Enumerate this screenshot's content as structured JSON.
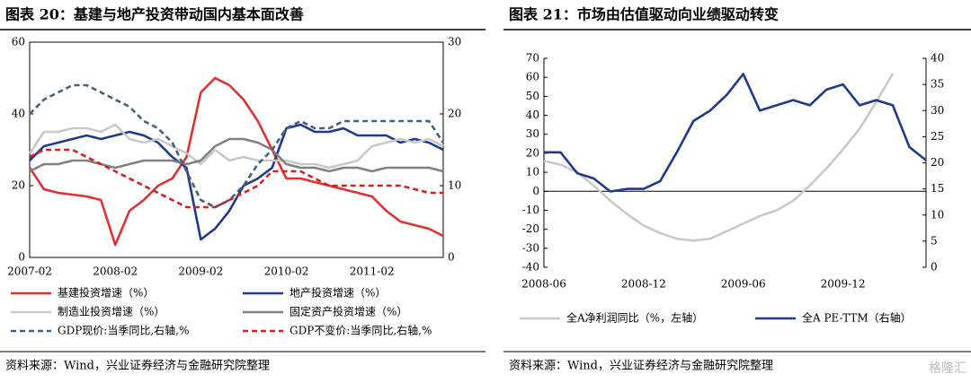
{
  "chart_data": [
    {
      "type": "line",
      "title": "图表 20：基建与地产投资带动国内基本面改善",
      "source": "资料来源：Wind，兴业证券经济与金融研究院整理",
      "categories": [
        "2007-02",
        null,
        null,
        null,
        null,
        null,
        "2008-02",
        null,
        null,
        null,
        null,
        null,
        "2009-02",
        null,
        null,
        null,
        null,
        null,
        "2010-02",
        null,
        null,
        null,
        null,
        null,
        "2011-02",
        null,
        null,
        null,
        null,
        null
      ],
      "ylim": [
        0,
        60
      ],
      "yticks": [
        0,
        20,
        40,
        60
      ],
      "y2lim": [
        0,
        30
      ],
      "y2ticks": [
        0,
        10,
        20,
        30
      ],
      "frame": true,
      "series": [
        {
          "name": "基建投资增速（%）",
          "color": "#e03131",
          "values": [
            25,
            19,
            18,
            17.5,
            17,
            16,
            3.5,
            13,
            16,
            20,
            22,
            28,
            46,
            50,
            48,
            44,
            38,
            30,
            22,
            22,
            21,
            20,
            19,
            18,
            17,
            13,
            10,
            9,
            8,
            6
          ]
        },
        {
          "name": "地产投资增速（%）",
          "color": "#1f3a8a",
          "values": [
            27,
            31,
            32,
            33,
            34,
            33,
            34,
            35,
            34,
            32,
            28,
            25,
            5,
            8,
            13,
            20,
            22,
            25,
            36,
            37,
            35,
            35,
            36,
            34,
            34,
            34,
            32,
            33,
            32,
            30
          ]
        },
        {
          "name": "制造业投资增速（%）",
          "color": "#c8c8c8",
          "values": [
            29,
            35,
            35,
            36,
            36,
            35,
            37,
            33,
            32,
            33,
            31,
            29,
            26,
            30,
            27,
            28,
            27,
            27,
            27,
            26,
            26,
            25,
            26,
            27,
            31,
            32,
            33,
            32,
            33,
            31
          ]
        },
        {
          "name": "固定资产投资增速（%）",
          "color": "#808080",
          "values": [
            24,
            26,
            26,
            27,
            27,
            26,
            25,
            26,
            27,
            27,
            27,
            26,
            27,
            31,
            33,
            33,
            32,
            30,
            26,
            25,
            25,
            24,
            25,
            25,
            24,
            25,
            25,
            25,
            25,
            24
          ]
        },
        {
          "name": "GDP现价:当季同比,右轴,%",
          "color": "#44607f",
          "dashed": true,
          "axis": "y2",
          "values": [
            20,
            22,
            23,
            24,
            24,
            23,
            22,
            21,
            19,
            18,
            16,
            12,
            8,
            7,
            8,
            10,
            13,
            15,
            18,
            19,
            18,
            18,
            19,
            19,
            19,
            19,
            19,
            19,
            19,
            16
          ]
        },
        {
          "name": "GDP不变价:当季同比,右轴,%",
          "color": "#d42020",
          "dashed": true,
          "axis": "y2",
          "values": [
            14,
            15,
            15,
            15,
            14,
            13,
            12,
            11,
            10,
            9,
            8,
            7,
            7,
            7,
            8,
            9,
            10,
            12,
            12,
            12,
            11,
            10,
            10,
            10,
            10,
            10,
            10,
            9.5,
            9,
            9
          ]
        }
      ]
    },
    {
      "type": "line",
      "title": "图表 21：市场由估值驱动向业绩驱动转变",
      "source": "资料来源：Wind，兴业证券经济与金融研究院整理",
      "watermark": "格隆汇",
      "categories": [
        "2008-06",
        null,
        null,
        null,
        null,
        null,
        "2008-12",
        null,
        null,
        null,
        null,
        null,
        "2009-06",
        null,
        null,
        null,
        null,
        null,
        "2009-12",
        null,
        null,
        null,
        null,
        null
      ],
      "ylim": [
        -40,
        70
      ],
      "yticks": [
        -40,
        -30,
        -20,
        -10,
        0,
        10,
        20,
        30,
        40,
        50,
        60,
        70
      ],
      "y2lim": [
        0,
        40
      ],
      "y2ticks": [
        0,
        5,
        10,
        15,
        20,
        25,
        30,
        35,
        40
      ],
      "frame": false,
      "series": [
        {
          "name": "全A净利润同比（%，左轴）",
          "color": "#c8c8c8",
          "values": [
            16,
            14,
            10,
            3,
            -5,
            -12,
            -18,
            -22,
            -25,
            -26,
            -25,
            -21,
            -17,
            -13,
            -10,
            -5,
            3,
            12,
            22,
            33,
            47,
            62,
            null,
            null
          ]
        },
        {
          "name": "全A PE-TTM（右轴）",
          "color": "#1f3a8a",
          "axis": "y2",
          "values": [
            22,
            22,
            18,
            17,
            14.5,
            15,
            15,
            16.5,
            22,
            28,
            30,
            33,
            37,
            30,
            31,
            32,
            31,
            34,
            35,
            31,
            32,
            31,
            23,
            20.5
          ]
        }
      ]
    }
  ]
}
